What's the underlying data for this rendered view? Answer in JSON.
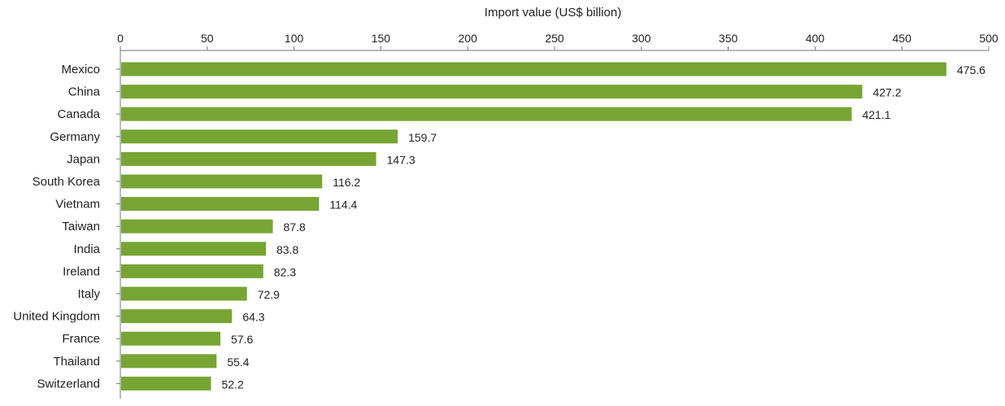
{
  "chart_data": {
    "type": "bar",
    "orientation": "horizontal",
    "title": "",
    "xlabel": "Import value (US$ billion)",
    "ylabel": "",
    "xlim": [
      0,
      500
    ],
    "x_ticks": [
      0,
      50,
      100,
      150,
      200,
      250,
      300,
      350,
      400,
      450,
      500
    ],
    "x_axis_position": "top",
    "grid": false,
    "categories": [
      "Mexico",
      "China",
      "Canada",
      "Germany",
      "Japan",
      "South Korea",
      "Vietnam",
      "Taiwan",
      "India",
      "Ireland",
      "Italy",
      "United Kingdom",
      "France",
      "Thailand",
      "Switzerland"
    ],
    "values": [
      475.6,
      427.2,
      421.1,
      159.7,
      147.3,
      116.2,
      114.4,
      87.8,
      83.8,
      82.3,
      72.9,
      64.3,
      57.6,
      55.4,
      52.2
    ],
    "value_labels": [
      "475.6",
      "427.2",
      "421.1",
      "159.7",
      "147.3",
      "116.2",
      "114.4",
      "87.8",
      "83.8",
      "82.3",
      "72.9",
      "64.3",
      "57.6",
      "55.4",
      "52.2"
    ],
    "bar_color": "#76a534",
    "axis_color": "#777777"
  }
}
